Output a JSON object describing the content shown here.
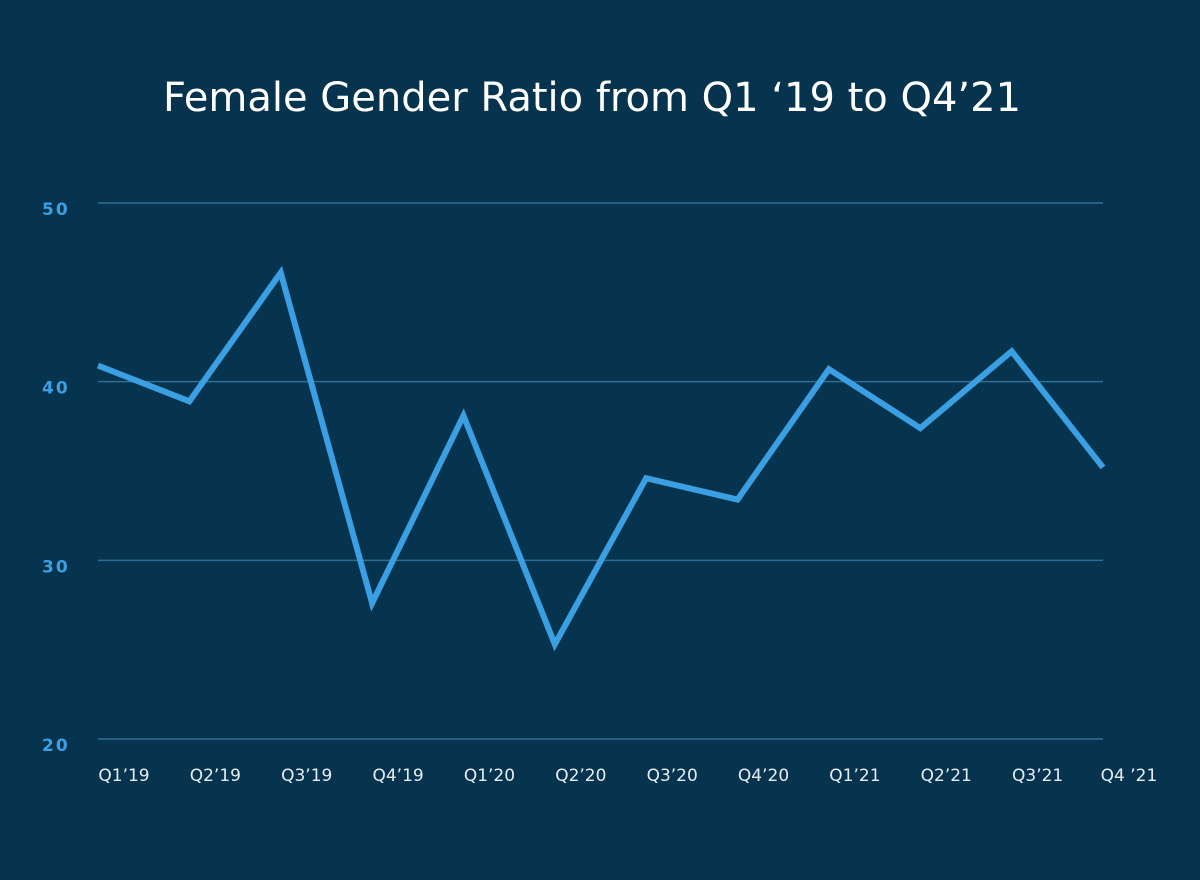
{
  "chart_data": {
    "type": "line",
    "title": "Female Gender Ratio from Q1 ‘19 to Q4’21",
    "categories": [
      "Q1’19",
      "Q2’19",
      "Q3’19",
      "Q4’19",
      "Q1’20",
      "Q2’20",
      "Q3’20",
      "Q4’20",
      "Q1’21",
      "Q2’21",
      "Q3’21",
      "Q4 ’21"
    ],
    "values": [
      40.9,
      38.9,
      46.1,
      27.6,
      38.1,
      25.3,
      34.6,
      33.4,
      40.7,
      37.4,
      41.7,
      35.2
    ],
    "color": "#3aa0e3",
    "ylim": [
      20,
      50
    ],
    "yticks": [
      20,
      30,
      40,
      50
    ],
    "grid": true
  }
}
